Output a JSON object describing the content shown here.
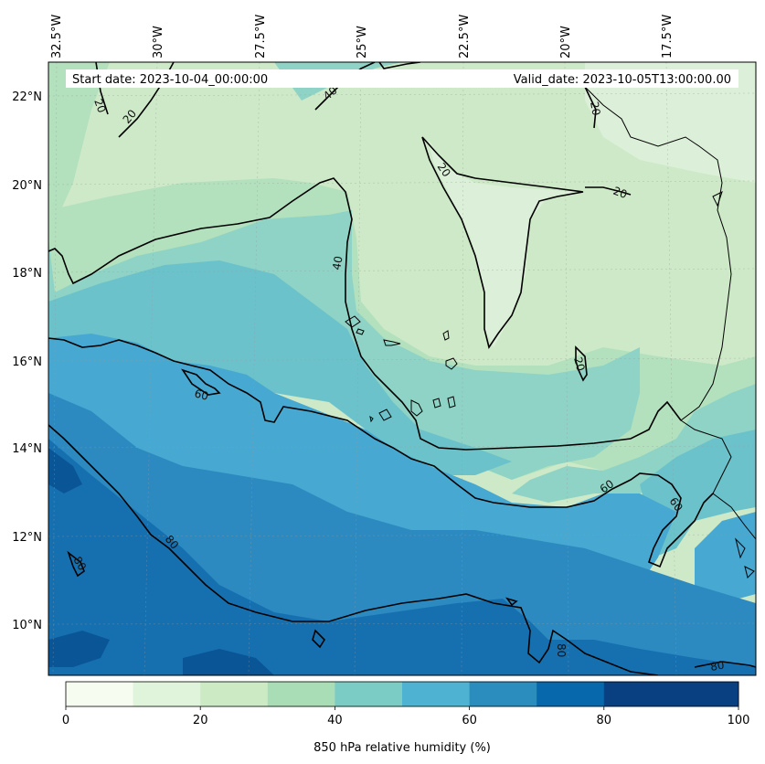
{
  "map": {
    "start_date": "Start date: 2023-10-04_00:00:00",
    "valid_date": "Valid_date: 2023-10-05T13:00:00.00",
    "lon_labels": [
      "32.5°W",
      "30°W",
      "27.5°W",
      "25°W",
      "22.5°W",
      "20°W",
      "17.5°W"
    ],
    "lat_labels": [
      "22°N",
      "20°N",
      "18°N",
      "16°N",
      "14°N",
      "12°N",
      "10°N"
    ],
    "contour_labels": [
      "20",
      "20",
      "40",
      "20",
      "20",
      "40",
      "20",
      "20",
      "60",
      "60",
      "60",
      "80",
      "80",
      "80",
      "80"
    ]
  },
  "colorbar": {
    "label": "850 hPa relative humidity (%)",
    "tick_labels": [
      "0",
      "20",
      "40",
      "60",
      "80",
      "100"
    ],
    "colors": [
      "#f7fcf0",
      "#e0f3db",
      "#ccebc5",
      "#a8ddb5",
      "#7bccc4",
      "#4eb3d3",
      "#2b8cbe",
      "#0868ac",
      "#084081",
      "#084081"
    ],
    "range": [
      0,
      100
    ],
    "step": 10
  },
  "palette": {
    "band_10_20": "#dcefd8",
    "band_20_30": "#cde9c7",
    "band_30_40": "#b3e0bd",
    "band_40_50": "#8ed3c5",
    "band_50_60": "#6cc2ca",
    "band_60_70": "#47a8d1",
    "band_70_80": "#2c8ac0",
    "band_80_90": "#1670b0",
    "band_90_100": "#0a5595"
  }
}
